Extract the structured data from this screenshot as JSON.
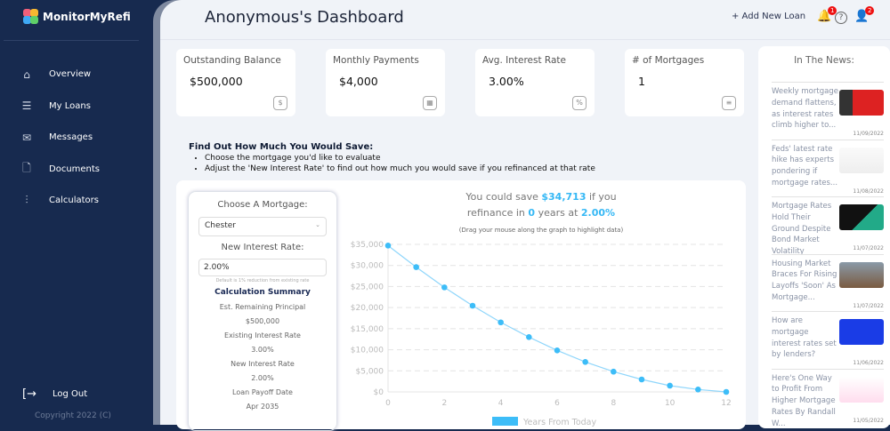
{
  "app": {
    "name": "MonitorMyRefi",
    "copyright": "Copyright 2022 (C)"
  },
  "sidebar": {
    "items": [
      {
        "label": "Overview",
        "icon": "home-icon"
      },
      {
        "label": "My Loans",
        "icon": "list-icon"
      },
      {
        "label": "Messages",
        "icon": "mail-icon"
      },
      {
        "label": "Documents",
        "icon": "document-icon"
      },
      {
        "label": "Calculators",
        "icon": "sliders-icon"
      }
    ],
    "logout": "Log Out"
  },
  "header": {
    "title": "Anonymous's Dashboard",
    "add_loan": "+ Add New Loan",
    "notifications": "1",
    "profile_badge": "2"
  },
  "cards": [
    {
      "label": "Outstanding Balance",
      "value": "$500,000",
      "icon": "dollar-icon"
    },
    {
      "label": "Monthly Payments",
      "value": "$4,000",
      "icon": "calendar-icon"
    },
    {
      "label": "Avg. Interest Rate",
      "value": "3.00%",
      "icon": "percent-icon"
    },
    {
      "label": "# of Mortgages",
      "value": "1",
      "icon": "list-icon"
    }
  ],
  "instructions": {
    "title": "Find Out How Much You Would Save:",
    "items": [
      "Choose the mortgage you'd like to evaluate",
      "Adjust the 'New Interest Rate' to find out how much you would save if you refinanced at that rate"
    ]
  },
  "calculator": {
    "choose_label": "Choose A Mortgage:",
    "mortgage": "Chester",
    "rate_label": "New Interest Rate:",
    "rate_value": "2.00%",
    "hint": "Default is 1% reduction from existing rate",
    "summary_title": "Calculation Summary",
    "summary": [
      {
        "label": "Est. Remaining Principal",
        "value": "$500,000"
      },
      {
        "label": "Existing Interest Rate",
        "value": "3.00%"
      },
      {
        "label": "New Interest Rate",
        "value": "2.00%"
      },
      {
        "label": "Loan Payoff Date",
        "value": "Apr 2035"
      }
    ]
  },
  "savings": {
    "pre": "You could save",
    "amount": "$34,713",
    "mid": "if you",
    "line2_pre": "refinance in",
    "years": "0",
    "line2_mid": "years at",
    "rate": "2.00%",
    "drag_hint": "(Drag your mouse along the graph to highlight data)"
  },
  "chart_data": {
    "type": "line",
    "x": [
      0,
      1,
      2,
      3,
      4,
      5,
      6,
      7,
      8,
      9,
      10,
      11,
      12
    ],
    "series": [
      {
        "name": "Years From Today",
        "values": [
          34713,
          29600,
          24800,
          20450,
          16500,
          13000,
          9850,
          7100,
          4800,
          2950,
          1480,
          570,
          0
        ]
      }
    ],
    "xlim": [
      0,
      12
    ],
    "ylim": [
      0,
      35000
    ],
    "xticks": [
      "0",
      "2",
      "4",
      "6",
      "8",
      "10",
      "12"
    ],
    "yticks": [
      "$0",
      "$5,000",
      "$10,000",
      "$15,000",
      "$20,000",
      "$25,000",
      "$30,000",
      "$35,000"
    ],
    "grid": true,
    "legend": "bottom",
    "color": "#3dbdf8"
  },
  "news": {
    "title": "In The News:",
    "items": [
      {
        "title": "Weekly mortgage demand flattens, as interest rates climb higher to...",
        "date": "11/09/2022"
      },
      {
        "title": "Feds' latest rate hike has experts pondering if mortgage rates...",
        "date": "11/08/2022"
      },
      {
        "title": "Mortgage Rates Hold Their Ground Despite Bond Market Volatility",
        "date": "11/07/2022"
      },
      {
        "title": "Housing Market Braces For Rising Layoffs 'Soon' As Mortgage...",
        "date": "11/07/2022"
      },
      {
        "title": "How are mortgage interest rates set by lenders?",
        "date": "11/06/2022"
      },
      {
        "title": "Here's One Way to Profit From Higher Mortgage Rates By Randall W...",
        "date": "11/05/2022"
      }
    ]
  }
}
